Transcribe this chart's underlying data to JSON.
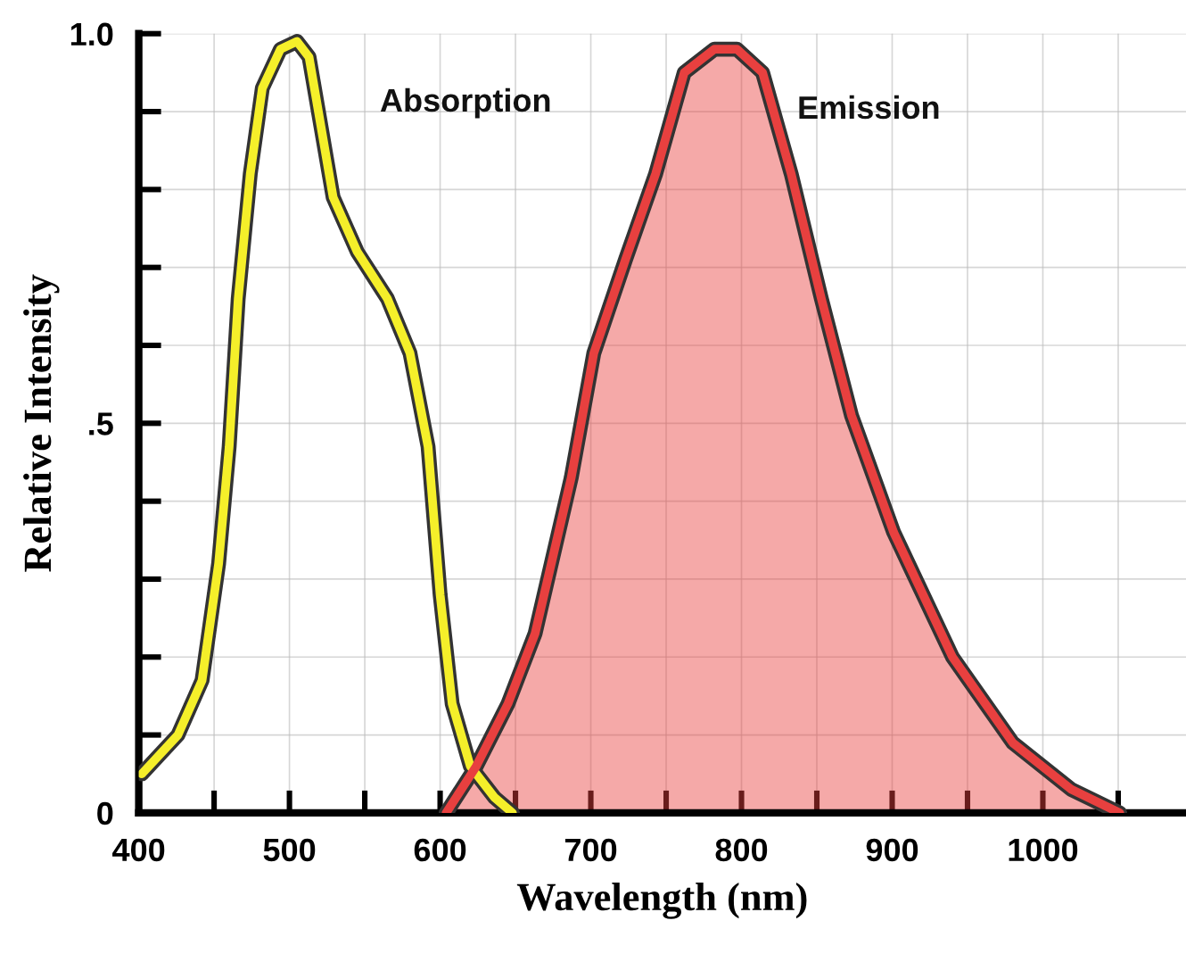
{
  "chart_data": {
    "type": "line",
    "xlabel": "Wavelength (nm)",
    "ylabel": "Relative Intensity",
    "xlim": [
      400,
      1095
    ],
    "ylim": [
      0,
      1.0
    ],
    "xticks": [
      400,
      {
        "value": 450,
        "label": null
      },
      500,
      {
        "value": 550,
        "label": null
      },
      600,
      {
        "value": 650,
        "label": null
      },
      700,
      {
        "value": 750,
        "label": null
      },
      800,
      {
        "value": 850,
        "label": null
      },
      900,
      {
        "value": 950,
        "label": null
      },
      1000,
      {
        "value": 1050,
        "label": null
      }
    ],
    "yticks": [
      0,
      {
        "value": 0.1,
        "label": null
      },
      {
        "value": 0.2,
        "label": null
      },
      {
        "value": 0.3,
        "label": null
      },
      {
        "value": 0.4,
        "label": null
      },
      {
        "value": 0.5,
        "label": ".5"
      },
      {
        "value": 0.6,
        "label": null
      },
      {
        "value": 0.7,
        "label": null
      },
      {
        "value": 0.8,
        "label": null
      },
      {
        "value": 0.9,
        "label": null
      },
      {
        "value": 1.0,
        "label": "1.0"
      }
    ],
    "grid": true,
    "legend": false,
    "series": [
      {
        "name": "Absorption",
        "color": "#f5ef2a",
        "x": [
          402,
          426,
          442,
          453,
          460,
          466,
          474,
          482,
          494,
          505,
          513,
          521,
          529,
          545,
          565,
          580,
          592,
          600,
          608,
          620,
          636,
          648
        ],
        "values": [
          0.05,
          0.1,
          0.17,
          0.32,
          0.47,
          0.66,
          0.82,
          0.93,
          0.98,
          0.99,
          0.97,
          0.88,
          0.79,
          0.72,
          0.66,
          0.59,
          0.47,
          0.28,
          0.14,
          0.06,
          0.02,
          0
        ]
      },
      {
        "name": "Emission",
        "type": "area",
        "color": "#e8403f",
        "x": [
          604,
          624,
          645,
          663,
          687,
          702,
          723,
          743,
          762,
          782,
          797,
          814,
          833,
          853,
          873,
          901,
          940,
          980,
          1019,
          1051
        ],
        "values": [
          0,
          0.06,
          0.14,
          0.23,
          0.43,
          0.59,
          0.71,
          0.82,
          0.95,
          0.98,
          0.98,
          0.95,
          0.82,
          0.66,
          0.51,
          0.36,
          0.2,
          0.09,
          0.03,
          0
        ]
      }
    ]
  }
}
